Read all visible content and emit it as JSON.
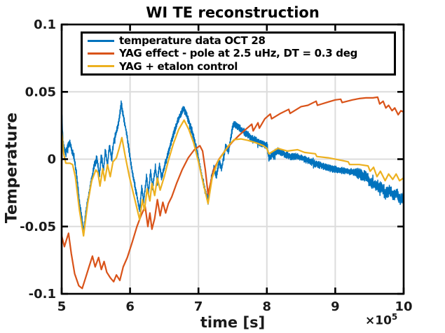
{
  "title": "WI TE reconstruction",
  "axes": {
    "xlabel": "time [s]",
    "ylabel": "Temperature",
    "exponent_base": "×10",
    "exponent_power": "5",
    "xlim": [
      5,
      10
    ],
    "ylim": [
      -0.1,
      0.1
    ],
    "xticks": [
      5,
      6,
      7,
      8,
      9,
      10
    ],
    "xtick_labels": [
      "5",
      "6",
      "7",
      "8",
      "9",
      "10"
    ],
    "yticks": [
      0.1,
      0.05,
      0,
      -0.05,
      -0.1
    ],
    "ytick_labels": [
      "0.1",
      "0.05",
      "0",
      "-0.05",
      "-0.1"
    ],
    "grid_x": [
      6,
      7,
      8,
      9
    ],
    "grid_y": [
      0.05,
      0,
      -0.05
    ]
  },
  "colors": {
    "blue": "#0072BD",
    "orange": "#D95319",
    "yellow": "#EDB120",
    "grid": "#DCDCDC",
    "axis": "#000000",
    "text": "#1a1a1a"
  },
  "legend": {
    "items": [
      {
        "label": "temperature data OCT 28",
        "color_key": "blue"
      },
      {
        "label": "YAG effect - pole at 2.5 uHz, DT = 0.3 deg",
        "color_key": "orange"
      },
      {
        "label": "YAG + etalon control",
        "color_key": "yellow"
      }
    ]
  },
  "chart_data": {
    "type": "line",
    "title": "WI TE reconstruction",
    "xlabel": "time [s]",
    "ylabel": "Temperature",
    "x_units": "seconds × 10^5",
    "xlim": [
      5,
      10
    ],
    "ylim": [
      -0.1,
      0.1
    ],
    "grid": true,
    "legend_position": "inside-top-left",
    "series": [
      {
        "name": "temperature data OCT 28",
        "color": "#0072BD",
        "style": "noisy-band",
        "band_halfwidth": 0.0026,
        "x": [
          5.0,
          5.02,
          5.05,
          5.08,
          5.12,
          5.15,
          5.18,
          5.22,
          5.26,
          5.32,
          5.37,
          5.42,
          5.48,
          5.52,
          5.55,
          5.58,
          5.61,
          5.64,
          5.67,
          5.7,
          5.73,
          5.76,
          5.8,
          5.84,
          5.87,
          5.91,
          5.96,
          6.02,
          6.08,
          6.14,
          6.17,
          6.2,
          6.24,
          6.27,
          6.3,
          6.33,
          6.37,
          6.4,
          6.43,
          6.46,
          6.5,
          6.55,
          6.62,
          6.7,
          6.78,
          6.84,
          6.9,
          6.97,
          7.04,
          7.1,
          7.14,
          7.19,
          7.23,
          7.26,
          7.3,
          7.34,
          7.4,
          7.44,
          7.5,
          7.53,
          7.6,
          7.7,
          7.8,
          7.9,
          8.0,
          8.03,
          8.1,
          8.16,
          8.25,
          8.35,
          8.45,
          8.55,
          8.7,
          8.93,
          9.05,
          9.17,
          9.3,
          9.4,
          9.46,
          9.5,
          9.6,
          9.68,
          9.73,
          9.8,
          9.85,
          9.9,
          9.95,
          10.0
        ],
        "y": [
          0.036,
          0.012,
          0.005,
          0.008,
          0.013,
          0.006,
          0.002,
          -0.012,
          -0.032,
          -0.053,
          -0.034,
          -0.02,
          -0.004,
          0.0,
          -0.013,
          0.003,
          -0.009,
          0.007,
          -0.005,
          0.011,
          -0.001,
          0.013,
          0.02,
          0.029,
          0.041,
          0.03,
          0.016,
          -0.006,
          -0.022,
          -0.038,
          -0.021,
          -0.031,
          -0.013,
          -0.025,
          -0.009,
          -0.021,
          -0.006,
          -0.017,
          -0.004,
          -0.014,
          -0.006,
          0.003,
          0.016,
          0.029,
          0.038,
          0.031,
          0.022,
          0.008,
          -0.01,
          -0.024,
          -0.031,
          -0.014,
          -0.006,
          -0.013,
          -0.002,
          -0.007,
          0.01,
          0.006,
          0.024,
          0.026,
          0.023,
          0.019,
          0.015,
          0.012,
          0.01,
          0.001,
          0.004,
          0.006,
          0.004,
          0.002,
          0.002,
          0.0,
          -0.003,
          -0.007,
          -0.008,
          -0.009,
          -0.01,
          -0.012,
          -0.013,
          -0.017,
          -0.02,
          -0.021,
          -0.026,
          -0.023,
          -0.027,
          -0.025,
          -0.03,
          -0.028
        ]
      },
      {
        "name": "YAG effect - pole at 2.5 uHz, DT = 0.3 deg",
        "color": "#D95319",
        "style": "line",
        "x": [
          5.0,
          5.04,
          5.07,
          5.1,
          5.14,
          5.19,
          5.25,
          5.3,
          5.35,
          5.4,
          5.45,
          5.49,
          5.54,
          5.58,
          5.62,
          5.66,
          5.71,
          5.76,
          5.8,
          5.85,
          5.9,
          5.96,
          6.03,
          6.1,
          6.16,
          6.22,
          6.26,
          6.29,
          6.32,
          6.36,
          6.4,
          6.44,
          6.48,
          6.52,
          6.56,
          6.61,
          6.68,
          6.76,
          6.85,
          6.94,
          7.02,
          7.06,
          7.1,
          7.14,
          7.22,
          7.3,
          7.4,
          7.5,
          7.6,
          7.7,
          7.78,
          7.8,
          7.87,
          7.89,
          7.97,
          8.05,
          8.07,
          8.2,
          8.32,
          8.34,
          8.5,
          8.6,
          8.72,
          8.74,
          8.9,
          9.0,
          9.08,
          9.1,
          9.25,
          9.35,
          9.45,
          9.55,
          9.62,
          9.65,
          9.7,
          9.74,
          9.78,
          9.83,
          9.87,
          9.92,
          9.96,
          10.0
        ],
        "y": [
          -0.057,
          -0.065,
          -0.06,
          -0.055,
          -0.07,
          -0.085,
          -0.094,
          -0.096,
          -0.088,
          -0.08,
          -0.072,
          -0.08,
          -0.073,
          -0.082,
          -0.076,
          -0.084,
          -0.088,
          -0.091,
          -0.086,
          -0.09,
          -0.08,
          -0.073,
          -0.062,
          -0.05,
          -0.042,
          -0.035,
          -0.05,
          -0.04,
          -0.052,
          -0.044,
          -0.03,
          -0.042,
          -0.032,
          -0.04,
          -0.033,
          -0.028,
          -0.018,
          -0.008,
          0.001,
          0.007,
          0.01,
          0.006,
          -0.008,
          -0.026,
          -0.008,
          0.0,
          0.007,
          0.013,
          0.018,
          0.0225,
          0.026,
          0.021,
          0.027,
          0.023,
          0.03,
          0.0335,
          0.03,
          0.034,
          0.037,
          0.034,
          0.039,
          0.04,
          0.043,
          0.04,
          0.0425,
          0.044,
          0.0445,
          0.042,
          0.044,
          0.045,
          0.0455,
          0.0455,
          0.046,
          0.041,
          0.043,
          0.038,
          0.04,
          0.036,
          0.038,
          0.033,
          0.036,
          0.035
        ]
      },
      {
        "name": "YAG + etalon control",
        "color": "#EDB120",
        "style": "line",
        "x": [
          5.0,
          5.03,
          5.06,
          5.12,
          5.16,
          5.2,
          5.26,
          5.32,
          5.38,
          5.44,
          5.5,
          5.53,
          5.56,
          5.6,
          5.63,
          5.67,
          5.71,
          5.75,
          5.8,
          5.84,
          5.88,
          5.93,
          5.99,
          6.06,
          6.14,
          6.18,
          6.21,
          6.25,
          6.29,
          6.32,
          6.36,
          6.4,
          6.44,
          6.5,
          6.56,
          6.63,
          6.71,
          6.79,
          6.86,
          6.93,
          7.0,
          7.07,
          7.14,
          7.2,
          7.28,
          7.36,
          7.44,
          7.52,
          7.62,
          7.72,
          7.85,
          7.95,
          8.0,
          8.03,
          8.16,
          8.3,
          8.45,
          8.55,
          8.71,
          8.73,
          8.9,
          9.1,
          9.19,
          9.21,
          9.35,
          9.48,
          9.51,
          9.56,
          9.61,
          9.66,
          9.73,
          9.78,
          9.84,
          9.89,
          9.94,
          10.0
        ],
        "y": [
          0.022,
          0.004,
          -0.003,
          -0.003,
          -0.004,
          -0.013,
          -0.038,
          -0.057,
          -0.033,
          -0.016,
          -0.008,
          -0.01,
          -0.02,
          -0.007,
          -0.016,
          -0.004,
          -0.013,
          -0.002,
          0.001,
          0.008,
          0.016,
          0.002,
          -0.013,
          -0.028,
          -0.045,
          -0.03,
          -0.038,
          -0.022,
          -0.031,
          -0.018,
          -0.027,
          -0.014,
          -0.023,
          -0.013,
          -0.001,
          0.011,
          0.022,
          0.029,
          0.022,
          0.012,
          -0.002,
          -0.018,
          -0.033,
          -0.014,
          -0.002,
          0.004,
          0.01,
          0.0145,
          0.015,
          0.014,
          0.012,
          0.01,
          0.008,
          0.004,
          0.008,
          0.006,
          0.007,
          0.005,
          0.004,
          0.002,
          0.001,
          -0.001,
          -0.002,
          -0.004,
          -0.004,
          -0.005,
          -0.009,
          -0.006,
          -0.013,
          -0.009,
          -0.016,
          -0.011,
          -0.015,
          -0.011,
          -0.016,
          -0.014
        ]
      }
    ]
  }
}
